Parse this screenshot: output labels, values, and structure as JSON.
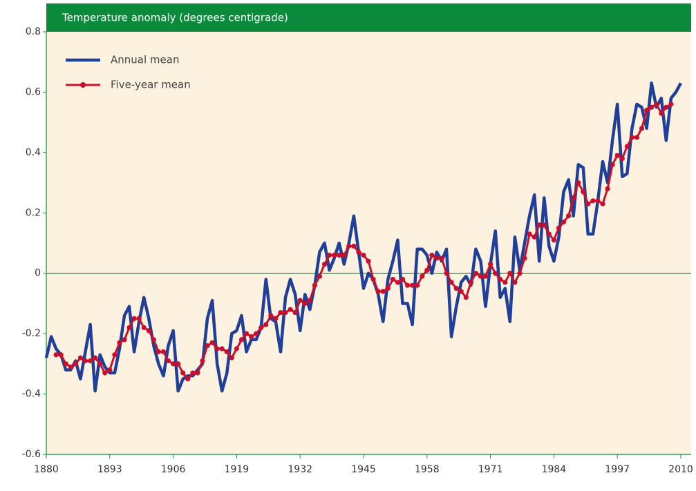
{
  "chart_data": {
    "type": "line",
    "title": "Temperature anomaly (degrees centigrade)",
    "x": [
      1880,
      1881,
      1882,
      1883,
      1884,
      1885,
      1886,
      1887,
      1888,
      1889,
      1890,
      1891,
      1892,
      1893,
      1894,
      1895,
      1896,
      1897,
      1898,
      1899,
      1900,
      1901,
      1902,
      1903,
      1904,
      1905,
      1906,
      1907,
      1908,
      1909,
      1910,
      1911,
      1912,
      1913,
      1914,
      1915,
      1916,
      1917,
      1918,
      1919,
      1920,
      1921,
      1922,
      1923,
      1924,
      1925,
      1926,
      1927,
      1928,
      1929,
      1930,
      1931,
      1932,
      1933,
      1934,
      1935,
      1936,
      1937,
      1938,
      1939,
      1940,
      1941,
      1942,
      1943,
      1944,
      1945,
      1946,
      1947,
      1948,
      1949,
      1950,
      1951,
      1952,
      1953,
      1954,
      1955,
      1956,
      1957,
      1958,
      1959,
      1960,
      1961,
      1962,
      1963,
      1964,
      1965,
      1966,
      1967,
      1968,
      1969,
      1970,
      1971,
      1972,
      1973,
      1974,
      1975,
      1976,
      1977,
      1978,
      1979,
      1980,
      1981,
      1982,
      1983,
      1984,
      1985,
      1986,
      1987,
      1988,
      1989,
      1990,
      1991,
      1992,
      1993,
      1994,
      1995,
      1996,
      1997,
      1998,
      1999,
      2000,
      2001,
      2002,
      2003,
      2004,
      2005,
      2006,
      2007,
      2008,
      2009,
      2010
    ],
    "series": [
      {
        "name": "Annual mean",
        "color": "#1f3f99",
        "markers": false,
        "values": [
          -0.28,
          -0.21,
          -0.25,
          -0.27,
          -0.32,
          -0.32,
          -0.29,
          -0.35,
          -0.26,
          -0.17,
          -0.39,
          -0.27,
          -0.31,
          -0.33,
          -0.33,
          -0.25,
          -0.14,
          -0.11,
          -0.26,
          -0.16,
          -0.08,
          -0.15,
          -0.24,
          -0.3,
          -0.34,
          -0.24,
          -0.19,
          -0.39,
          -0.35,
          -0.34,
          -0.34,
          -0.32,
          -0.3,
          -0.15,
          -0.09,
          -0.3,
          -0.39,
          -0.33,
          -0.2,
          -0.19,
          -0.14,
          -0.26,
          -0.22,
          -0.22,
          -0.18,
          -0.02,
          -0.15,
          -0.16,
          -0.26,
          -0.08,
          -0.02,
          -0.07,
          -0.19,
          -0.07,
          -0.12,
          -0.04,
          0.07,
          0.1,
          0.01,
          0.05,
          0.1,
          0.03,
          0.1,
          0.19,
          0.07,
          -0.05,
          0.0,
          -0.02,
          -0.07,
          -0.16,
          -0.02,
          0.04,
          0.11,
          -0.1,
          -0.1,
          -0.17,
          0.08,
          0.08,
          0.06,
          0.0,
          0.07,
          0.04,
          0.08,
          -0.21,
          -0.11,
          -0.03,
          -0.01,
          -0.04,
          0.08,
          0.04,
          -0.11,
          0.03,
          0.14,
          -0.08,
          -0.05,
          -0.16,
          0.12,
          0.01,
          0.1,
          0.19,
          0.26,
          0.04,
          0.25,
          0.09,
          0.04,
          0.12,
          0.27,
          0.31,
          0.19,
          0.36,
          0.35,
          0.13,
          0.13,
          0.24,
          0.37,
          0.3,
          0.44,
          0.56,
          0.32,
          0.33,
          0.48,
          0.56,
          0.55,
          0.48,
          0.63,
          0.55,
          0.58,
          0.44,
          0.58,
          0.6,
          0.63
        ]
      },
      {
        "name": "Five-year mean",
        "color": "#c8102e",
        "markers": true,
        "values": [
          null,
          null,
          -0.27,
          -0.27,
          -0.3,
          -0.31,
          -0.3,
          -0.28,
          -0.29,
          -0.29,
          -0.28,
          -0.3,
          -0.33,
          -0.32,
          -0.27,
          -0.23,
          -0.22,
          -0.18,
          -0.15,
          -0.15,
          -0.18,
          -0.19,
          -0.22,
          -0.26,
          -0.26,
          -0.29,
          -0.3,
          -0.3,
          -0.33,
          -0.35,
          -0.33,
          -0.33,
          -0.29,
          -0.24,
          -0.23,
          -0.25,
          -0.25,
          -0.26,
          -0.28,
          -0.25,
          -0.22,
          -0.2,
          -0.21,
          -0.2,
          -0.18,
          -0.17,
          -0.14,
          -0.15,
          -0.13,
          -0.13,
          -0.12,
          -0.13,
          -0.09,
          -0.1,
          -0.09,
          -0.04,
          -0.01,
          0.03,
          0.06,
          0.06,
          0.06,
          0.06,
          0.09,
          0.09,
          0.07,
          0.06,
          0.04,
          -0.02,
          -0.06,
          -0.06,
          -0.05,
          -0.02,
          -0.03,
          -0.02,
          -0.04,
          -0.04,
          -0.04,
          -0.01,
          0.01,
          0.06,
          0.05,
          0.05,
          0.0,
          -0.03,
          -0.05,
          -0.06,
          -0.08,
          -0.03,
          0.0,
          -0.01,
          -0.01,
          0.03,
          0.0,
          -0.02,
          -0.03,
          0.0,
          -0.03,
          0.0,
          0.05,
          0.13,
          0.12,
          0.16,
          0.16,
          0.13,
          0.11,
          0.15,
          0.17,
          0.19,
          0.25,
          0.3,
          0.27,
          0.23,
          0.24,
          0.24,
          0.23,
          0.28,
          0.36,
          0.39,
          0.38,
          0.42,
          0.45,
          0.45,
          0.48,
          0.54,
          0.55,
          0.56,
          0.53,
          0.55,
          0.56,
          null,
          null
        ]
      }
    ],
    "xlim": [
      1880,
      2010
    ],
    "xticks": [
      1880,
      1893,
      1906,
      1919,
      1932,
      1945,
      1958,
      1971,
      1984,
      1997,
      2010
    ],
    "ylim": [
      -0.6,
      0.8
    ],
    "yticks": [
      -0.6,
      -0.4,
      -0.2,
      0,
      0.2,
      0.4,
      0.6,
      0.8
    ],
    "zero_line": true
  }
}
